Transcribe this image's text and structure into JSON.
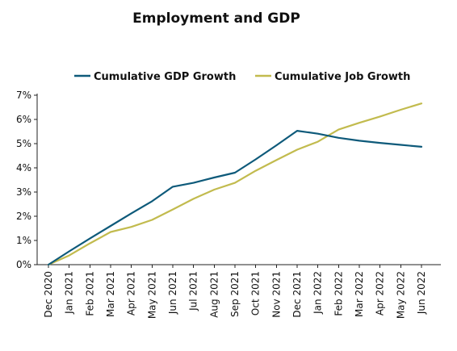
{
  "chart_data": {
    "type": "line",
    "title": "Employment and GDP",
    "xlabel": "",
    "ylabel": "",
    "grid": false,
    "legend_position": "top",
    "ylim": [
      0,
      7
    ],
    "y_ticks": [
      0,
      1,
      2,
      3,
      4,
      5,
      6,
      7
    ],
    "y_tick_suffix": "%",
    "categories": [
      "Dec 2020",
      "Jan 2021",
      "Feb 2021",
      "Mar 2021",
      "Apr 2021",
      "May 2021",
      "Jun 2021",
      "Jul 2021",
      "Aug 2021",
      "Sep 2021",
      "Oct 2021",
      "Nov 2021",
      "Dec 2021",
      "Jan 2022",
      "Feb 2022",
      "Mar 2022",
      "Apr 2022",
      "May 2022",
      "Jun 2022"
    ],
    "series": [
      {
        "name": "Cumulative GDP Growth",
        "color": "#0e5a7a",
        "values": [
          0.0,
          0.55,
          1.08,
          1.6,
          2.12,
          2.62,
          3.22,
          3.38,
          3.6,
          3.8,
          4.35,
          4.93,
          5.53,
          5.41,
          5.24,
          5.12,
          5.03,
          4.95,
          4.87
        ]
      },
      {
        "name": "Cumulative Job Growth",
        "color": "#c2bb4e",
        "values": [
          0.0,
          0.38,
          0.88,
          1.35,
          1.56,
          1.85,
          2.28,
          2.72,
          3.1,
          3.38,
          3.88,
          4.32,
          4.75,
          5.08,
          5.58,
          5.86,
          6.12,
          6.4,
          6.66
        ]
      }
    ]
  }
}
